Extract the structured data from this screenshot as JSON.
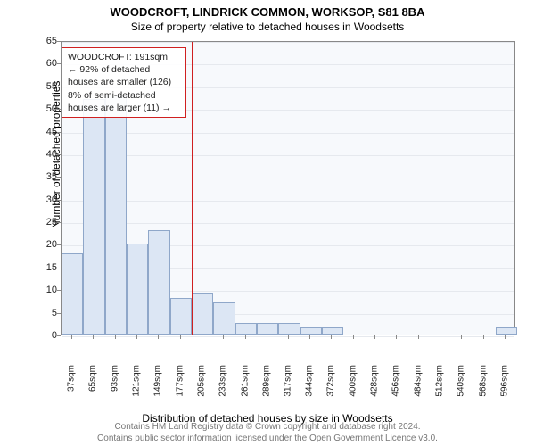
{
  "title": {
    "main": "WOODCROFT, LINDRICK COMMON, WORKSOP, S81 8BA",
    "sub": "Size of property relative to detached houses in Woodsetts"
  },
  "chart": {
    "type": "histogram",
    "background_color": "#f7f9fc",
    "grid_color": "#e6e9ee",
    "axis_color": "#888888",
    "bar_fill": "#dce6f4",
    "bar_border": "#8fa7c9",
    "reference_line_color": "#d02020",
    "y": {
      "title": "Number of detached properties",
      "min": 0,
      "max": 65,
      "tick_step": 5,
      "ticks": [
        0,
        5,
        10,
        15,
        20,
        25,
        30,
        35,
        40,
        45,
        50,
        55,
        60,
        65
      ]
    },
    "x": {
      "title": "Distribution of detached houses by size in Woodsetts",
      "tick_labels": [
        "37sqm",
        "65sqm",
        "93sqm",
        "121sqm",
        "149sqm",
        "177sqm",
        "205sqm",
        "233sqm",
        "261sqm",
        "289sqm",
        "317sqm",
        "344sqm",
        "372sqm",
        "400sqm",
        "428sqm",
        "456sqm",
        "484sqm",
        "512sqm",
        "540sqm",
        "568sqm",
        "596sqm"
      ],
      "min": 23,
      "max": 610,
      "tick_values": [
        37,
        65,
        93,
        121,
        149,
        177,
        205,
        233,
        261,
        289,
        317,
        344,
        372,
        400,
        428,
        456,
        484,
        512,
        540,
        568,
        596
      ]
    },
    "bars": {
      "bin_start": 23,
      "bin_width": 28,
      "values": [
        18,
        52,
        53,
        20,
        23,
        8,
        9,
        7,
        2.5,
        2.5,
        2.5,
        1.5,
        1.5,
        0,
        0,
        0,
        0,
        0,
        0,
        0,
        1.5
      ]
    },
    "reference": {
      "value_sqm": 191,
      "annotation": {
        "line1": "WOODCROFT: 191sqm",
        "line2": "← 92% of detached houses are smaller (126)",
        "line3": "8% of semi-detached houses are larger (11) →"
      }
    }
  },
  "attribution": {
    "line1": "Contains HM Land Registry data © Crown copyright and database right 2024.",
    "line2": "Contains public sector information licensed under the Open Government Licence v3.0."
  }
}
